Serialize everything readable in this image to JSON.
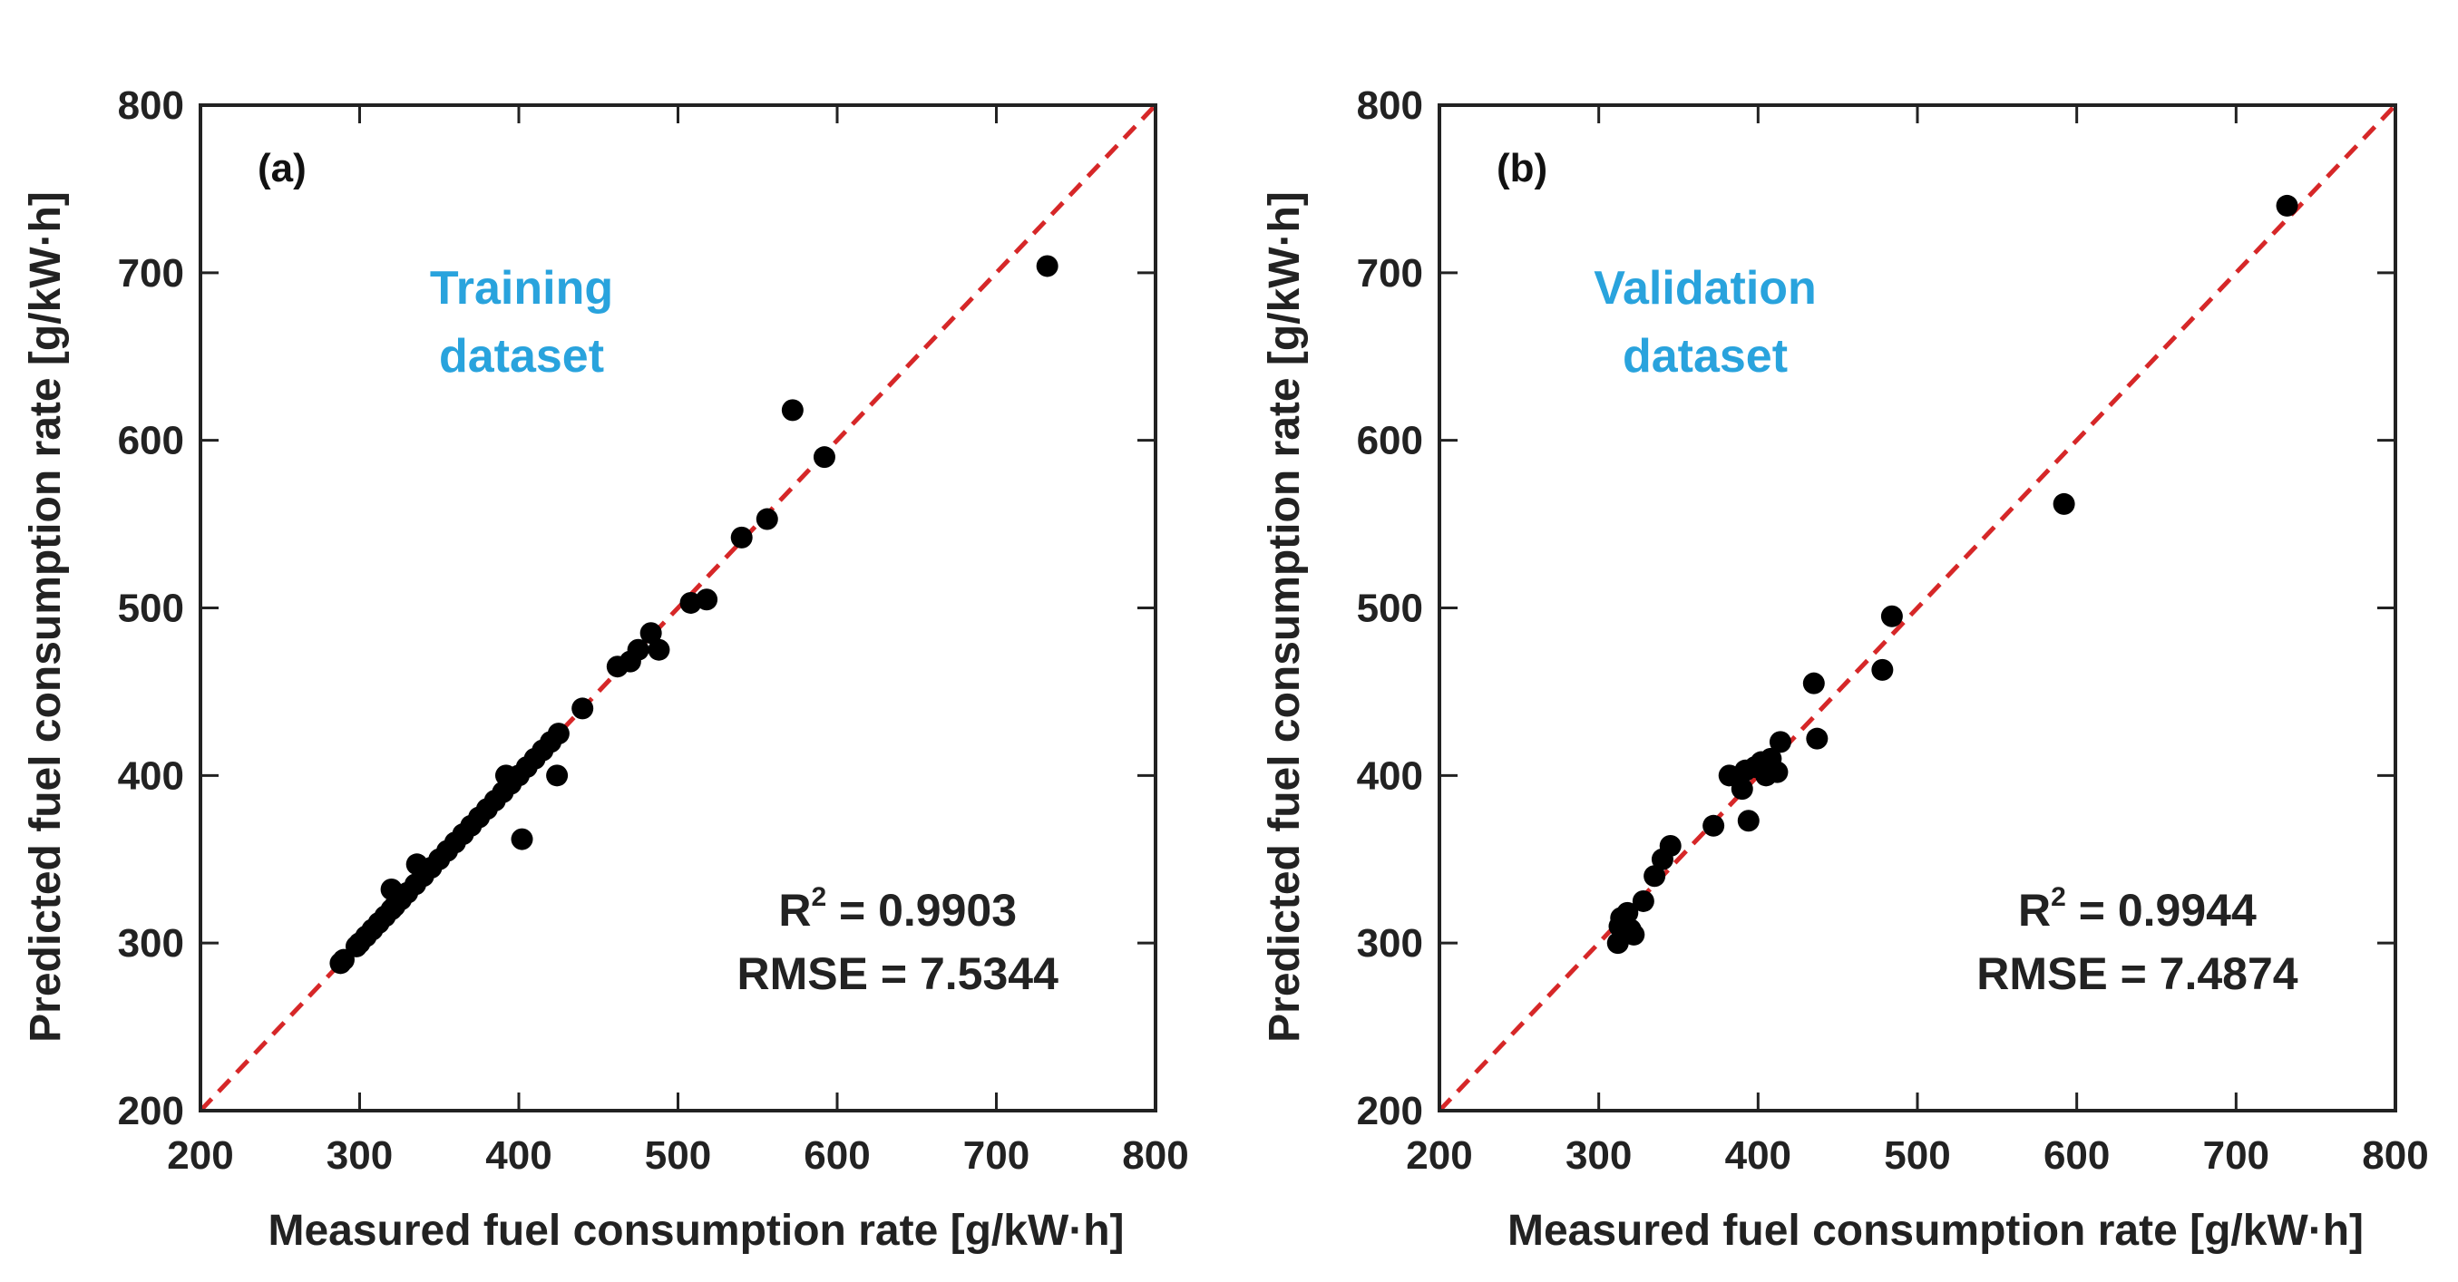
{
  "chart_data": [
    {
      "type": "scatter",
      "panel_label": "(a)",
      "dataset_label": [
        "Training",
        "dataset"
      ],
      "xlabel": "Measured fuel consumption rate [g/kW·h]",
      "ylabel": "Predicted fuel consumption rate [g/kW·h]",
      "xlim": [
        200,
        800
      ],
      "ylim": [
        200,
        800
      ],
      "ticks": [
        200,
        300,
        400,
        500,
        600,
        700,
        800
      ],
      "tick_labels": [
        "200",
        "300",
        "400",
        "500",
        "600",
        "700",
        "800"
      ],
      "r2_label": "R",
      "r2_value": " = 0.9903",
      "rmse_text": "RMSE = 7.5344",
      "line": {
        "type": "y=x",
        "color": "#d62728",
        "style": "dashed"
      },
      "marker_color": "#000000",
      "x": [
        288,
        290,
        298,
        300,
        304,
        308,
        312,
        316,
        320,
        322,
        326,
        330,
        335,
        340,
        345,
        350,
        355,
        360,
        365,
        370,
        375,
        380,
        385,
        390,
        395,
        400,
        405,
        410,
        415,
        420,
        425,
        440,
        462,
        470,
        475,
        483,
        488,
        508,
        518,
        540,
        556,
        572,
        592,
        732,
        402,
        424,
        320,
        336,
        392
      ],
      "y": [
        288,
        290,
        298,
        300,
        304,
        308,
        312,
        316,
        320,
        322,
        326,
        330,
        335,
        340,
        345,
        350,
        355,
        360,
        365,
        370,
        375,
        380,
        385,
        390,
        395,
        400,
        405,
        410,
        415,
        420,
        425,
        440,
        465,
        468,
        475,
        485,
        475,
        503,
        505,
        542,
        553,
        618,
        590,
        704,
        362,
        400,
        332,
        347,
        400
      ]
    },
    {
      "type": "scatter",
      "panel_label": "(b)",
      "dataset_label": [
        "Validation",
        "dataset"
      ],
      "xlabel": "Measured fuel consumption rate [g/kW·h]",
      "ylabel": "Predicted fuel consumption rate [g/kW·h]",
      "xlim": [
        200,
        800
      ],
      "ylim": [
        200,
        800
      ],
      "ticks": [
        200,
        300,
        400,
        500,
        600,
        700,
        800
      ],
      "tick_labels": [
        "200",
        "300",
        "400",
        "500",
        "600",
        "700",
        "800"
      ],
      "r2_label": "R",
      "r2_value": " = 0.9944",
      "rmse_text": "RMSE = 7.4874",
      "line": {
        "type": "y=x",
        "color": "#d62728",
        "style": "dashed"
      },
      "marker_color": "#000000",
      "x": [
        312,
        313,
        314,
        316,
        318,
        320,
        322,
        328,
        335,
        340,
        345,
        372,
        382,
        390,
        392,
        394,
        398,
        402,
        405,
        408,
        412,
        414,
        435,
        437,
        478,
        484,
        592,
        732
      ],
      "y": [
        300,
        310,
        315,
        312,
        318,
        308,
        305,
        325,
        340,
        350,
        358,
        370,
        400,
        392,
        403,
        373,
        405,
        408,
        400,
        410,
        402,
        420,
        455,
        422,
        463,
        495,
        562,
        740
      ]
    }
  ]
}
